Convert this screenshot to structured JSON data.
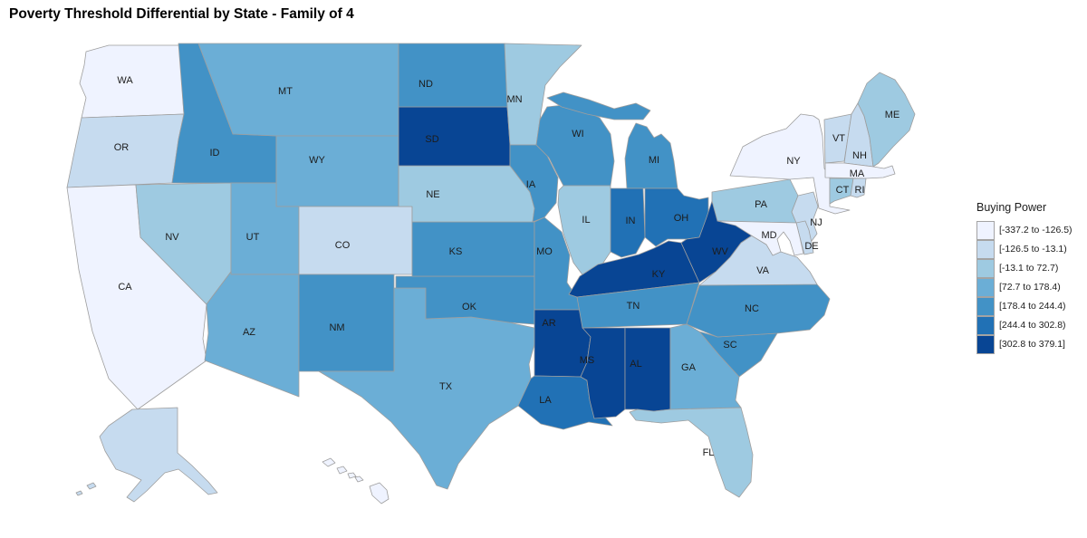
{
  "title": "Poverty Threshold Differential by State - Family of 4",
  "chart_data": {
    "type": "choropleth",
    "title": "Poverty Threshold Differential by State - Family of 4",
    "geography": "United States",
    "legend_title": "Buying Power",
    "legend_position": "right",
    "border_color": "#9e9e9e",
    "background_color": "#ffffff",
    "bins": [
      {
        "label": "[-337.2 to -126.5)",
        "color": "#eff3ff"
      },
      {
        "label": "[-126.5 to -13.1)",
        "color": "#c6dbef"
      },
      {
        "label": "[-13.1 to 72.7)",
        "color": "#9ecae1"
      },
      {
        "label": "[72.7 to 178.4)",
        "color": "#6baed6"
      },
      {
        "label": "[178.4 to 244.4)",
        "color": "#4292c6"
      },
      {
        "label": "[244.4 to 302.8)",
        "color": "#2171b5"
      },
      {
        "label": "[302.8 to 379.1]",
        "color": "#084594"
      }
    ],
    "states": [
      {
        "id": "WA",
        "label": "WA",
        "bin": 0
      },
      {
        "id": "OR",
        "label": "OR",
        "bin": 1
      },
      {
        "id": "CA",
        "label": "CA",
        "bin": 0
      },
      {
        "id": "NV",
        "label": "NV",
        "bin": 2
      },
      {
        "id": "ID",
        "label": "ID",
        "bin": 4
      },
      {
        "id": "MT",
        "label": "MT",
        "bin": 3
      },
      {
        "id": "WY",
        "label": "WY",
        "bin": 3
      },
      {
        "id": "UT",
        "label": "UT",
        "bin": 3
      },
      {
        "id": "CO",
        "label": "CO",
        "bin": 1
      },
      {
        "id": "AZ",
        "label": "AZ",
        "bin": 3
      },
      {
        "id": "NM",
        "label": "NM",
        "bin": 4
      },
      {
        "id": "TX",
        "label": "TX",
        "bin": 3
      },
      {
        "id": "OK",
        "label": "OK",
        "bin": 4
      },
      {
        "id": "KS",
        "label": "KS",
        "bin": 4
      },
      {
        "id": "NE",
        "label": "NE",
        "bin": 2
      },
      {
        "id": "SD",
        "label": "SD",
        "bin": 6
      },
      {
        "id": "ND",
        "label": "ND",
        "bin": 4
      },
      {
        "id": "MN",
        "label": "MN",
        "bin": 2
      },
      {
        "id": "IA",
        "label": "IA",
        "bin": 4
      },
      {
        "id": "MO",
        "label": "MO",
        "bin": 4
      },
      {
        "id": "AR",
        "label": "AR",
        "bin": 6
      },
      {
        "id": "LA",
        "label": "LA",
        "bin": 5
      },
      {
        "id": "WI",
        "label": "WI",
        "bin": 4
      },
      {
        "id": "IL",
        "label": "IL",
        "bin": 2
      },
      {
        "id": "MS",
        "label": "MS",
        "bin": 6
      },
      {
        "id": "MI",
        "label": "MI",
        "bin": 4
      },
      {
        "id": "IN",
        "label": "IN",
        "bin": 5
      },
      {
        "id": "OH",
        "label": "OH",
        "bin": 5
      },
      {
        "id": "KY",
        "label": "KY",
        "bin": 6
      },
      {
        "id": "TN",
        "label": "TN",
        "bin": 4
      },
      {
        "id": "AL",
        "label": "AL",
        "bin": 6
      },
      {
        "id": "GA",
        "label": "GA",
        "bin": 3
      },
      {
        "id": "FL",
        "label": "FL",
        "bin": 2
      },
      {
        "id": "SC",
        "label": "SC",
        "bin": 4
      },
      {
        "id": "NC",
        "label": "NC",
        "bin": 4
      },
      {
        "id": "VA",
        "label": "VA",
        "bin": 1
      },
      {
        "id": "WV",
        "label": "WV",
        "bin": 6
      },
      {
        "id": "PA",
        "label": "PA",
        "bin": 2
      },
      {
        "id": "NY",
        "label": "NY",
        "bin": 0
      },
      {
        "id": "NJ",
        "label": "NJ",
        "bin": 1
      },
      {
        "id": "DE",
        "label": "DE",
        "bin": 1
      },
      {
        "id": "MD",
        "label": "MD",
        "bin": 0
      },
      {
        "id": "VT",
        "label": "VT",
        "bin": 1
      },
      {
        "id": "NH",
        "label": "NH",
        "bin": 1
      },
      {
        "id": "MA",
        "label": "MA",
        "bin": 0
      },
      {
        "id": "CT",
        "label": "CT",
        "bin": 2
      },
      {
        "id": "RI",
        "label": "RI",
        "bin": 1
      },
      {
        "id": "ME",
        "label": "ME",
        "bin": 2
      },
      {
        "id": "AK",
        "label": "",
        "bin": 1
      },
      {
        "id": "HI",
        "label": "",
        "bin": 0
      }
    ]
  }
}
